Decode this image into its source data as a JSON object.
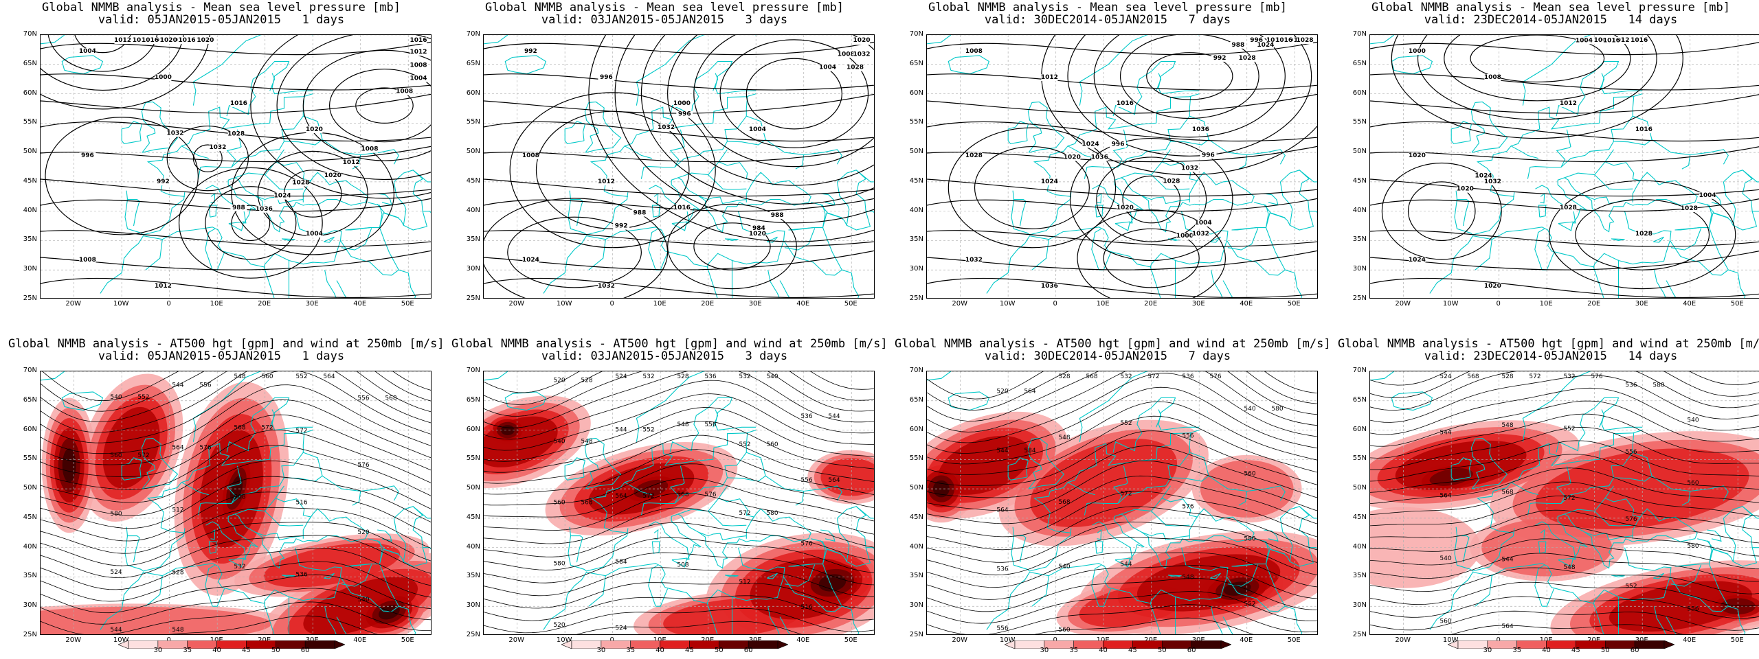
{
  "mslp_label_color": "#000000",
  "coast_color": "#00c8c8",
  "grid_line_color": "#b0b0b0",
  "lat_labels": [
    "70N",
    "65N",
    "60N",
    "55N",
    "50N",
    "45N",
    "40N",
    "35N",
    "30N",
    "25N"
  ],
  "lon_labels": [
    "20W",
    "10W",
    "0",
    "10E",
    "20E",
    "30E",
    "40E",
    "50E"
  ],
  "colorbar": {
    "ticks": [
      "30",
      "35",
      "40",
      "45",
      "50",
      "60"
    ],
    "colors": [
      "#fde0e0",
      "#f8a8a8",
      "#f06060",
      "#e02020",
      "#b00000",
      "#6a0000",
      "#3a0000"
    ]
  },
  "panels": [
    {
      "kind": "mslp",
      "title_line1": "Global NMMB analysis - Mean sea level pressure [mb]",
      "title_line2": "valid: 05JAN2015-05JAN2015   1 days",
      "contour_labels": [
        "1012",
        "1016",
        "1016",
        "1012",
        "1008",
        "1004",
        "1008",
        "1012",
        "1016",
        "1032",
        "1028",
        "1032",
        "1036",
        "1024",
        "1028",
        "1020",
        "1012",
        "1008",
        "1004",
        "1000",
        "1016",
        "1020",
        "996",
        "992",
        "988",
        "1004",
        "1008",
        "1012",
        "1016",
        "1020",
        "1016",
        "1020"
      ]
    },
    {
      "kind": "mslp",
      "title_line1": "Global NMMB analysis - Mean sea level pressure [mb]",
      "title_line2": "valid: 03JAN2015-05JAN2015   3 days",
      "contour_labels": [
        "1004",
        "1008",
        "1012",
        "1016",
        "1020",
        "1024",
        "1028",
        "1032",
        "996",
        "992",
        "988",
        "984",
        "988",
        "992",
        "996",
        "1000",
        "1004",
        "1008",
        "1012",
        "1016",
        "1020",
        "1024",
        "1032",
        "1028",
        "1032",
        "1016",
        "1020",
        "1020"
      ]
    },
    {
      "kind": "mslp",
      "title_line1": "Global NMMB analysis - Mean sea level pressure [mb]",
      "title_line2": "valid: 30DEC2014-05JAN2015   7 days",
      "contour_labels": [
        "992",
        "988",
        "996",
        "1012",
        "1016",
        "1020",
        "1024",
        "1028",
        "1032",
        "996",
        "1000",
        "1004",
        "1008",
        "1012",
        "1016",
        "1036",
        "1028",
        "1024",
        "1020",
        "1032",
        "1032",
        "1036",
        "1028",
        "1024",
        "1016",
        "1020",
        "1028",
        "1036",
        "996"
      ]
    },
    {
      "kind": "mslp",
      "title_line1": "Global NMMB analysis - Mean sea level pressure [mb]",
      "title_line2": "valid: 23DEC2014-05JAN2015   14 days",
      "contour_labels": [
        "1004",
        "1008",
        "1012",
        "1016",
        "1020",
        "1024",
        "1028",
        "1004",
        "1000",
        "1008",
        "1012",
        "1016",
        "1020",
        "1032",
        "1028",
        "1028",
        "1024",
        "1020",
        "1016"
      ]
    },
    {
      "kind": "z500",
      "title_line1": "Global NMMB analysis - AT500 hgt [gpm] and wind at 250mb [m/s]",
      "title_line2": "valid: 05JAN2015-05JAN2015   1 days",
      "contour_labels": [
        "540",
        "544",
        "548",
        "552",
        "556",
        "560",
        "564",
        "568",
        "572",
        "576",
        "580",
        "512",
        "508",
        "516",
        "520",
        "524",
        "528",
        "532",
        "536",
        "540",
        "544",
        "548",
        "552",
        "556",
        "560",
        "564",
        "568",
        "572",
        "576",
        "572"
      ]
    },
    {
      "kind": "z500",
      "title_line1": "Global NMMB analysis - AT500 hgt [gpm] and wind at 250mb [m/s]",
      "title_line2": "valid: 03JAN2015-05JAN2015   3 days",
      "contour_labels": [
        "520",
        "524",
        "528",
        "532",
        "536",
        "540",
        "544",
        "548",
        "552",
        "556",
        "560",
        "564",
        "568",
        "572",
        "576",
        "580",
        "584",
        "508",
        "512",
        "516",
        "520",
        "524",
        "528",
        "532",
        "536",
        "540",
        "544",
        "548",
        "552",
        "556",
        "560",
        "564",
        "568",
        "572",
        "576",
        "580"
      ]
    },
    {
      "kind": "z500",
      "title_line1": "Global NMMB analysis - AT500 hgt [gpm] and wind at 250mb [m/s]",
      "title_line2": "valid: 30DEC2014-05JAN2015   7 days",
      "contour_labels": [
        "520",
        "528",
        "532",
        "536",
        "540",
        "544",
        "548",
        "552",
        "556",
        "560",
        "564",
        "568",
        "572",
        "576",
        "580",
        "536",
        "540",
        "544",
        "548",
        "552",
        "556",
        "560",
        "564",
        "568",
        "572",
        "576",
        "580",
        "584"
      ]
    },
    {
      "kind": "z500",
      "title_line1": "Global NMMB analysis - AT500 hgt [gpm] and wind at 250mb [m/s]",
      "title_line2": "valid: 23DEC2014-05JAN2015   14 days",
      "contour_labels": [
        "524",
        "528",
        "532",
        "536",
        "540",
        "544",
        "548",
        "552",
        "556",
        "560",
        "564",
        "568",
        "572",
        "576",
        "580",
        "540",
        "544",
        "548",
        "552",
        "556",
        "560",
        "564",
        "568",
        "572",
        "576",
        "580"
      ]
    }
  ]
}
